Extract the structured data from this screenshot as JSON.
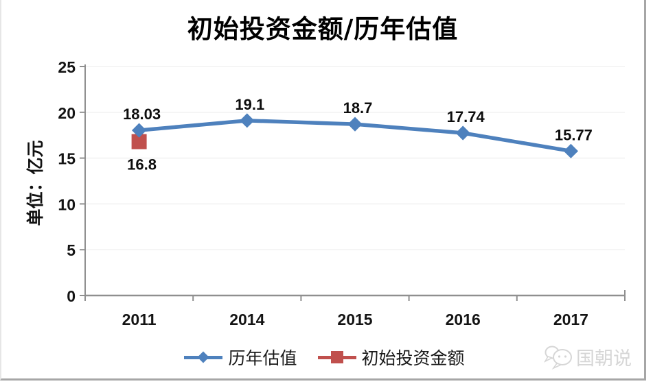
{
  "chart_data": {
    "type": "line",
    "title": "初始投资金额/历年估值",
    "ylabel": "单位：亿元",
    "categories": [
      "2011",
      "2014",
      "2015",
      "2016",
      "2017"
    ],
    "series": [
      {
        "name": "历年估值",
        "marker": "diamond",
        "color": "#4E81BD",
        "show_line": true,
        "values": [
          18.03,
          19.1,
          18.7,
          17.74,
          15.77
        ],
        "data_labels": [
          "18.03",
          "19.1",
          "18.7",
          "17.74",
          "15.77"
        ],
        "label_offset": -16
      },
      {
        "name": "初始投资金额",
        "marker": "square",
        "color": "#C0504D",
        "show_line": false,
        "values": [
          16.8,
          null,
          null,
          null,
          null
        ],
        "data_labels": [
          "16.8",
          null,
          null,
          null,
          null
        ],
        "label_offset": 41
      }
    ],
    "ylim": [
      0,
      25
    ],
    "yticks": [
      0,
      5,
      10,
      15,
      20,
      25
    ],
    "grid": true,
    "legend_position": "bottom"
  },
  "colors": {
    "axis": "#8f8f8f",
    "gridline": "#f2f2f2",
    "tick_text": "#141414",
    "border": "#a6a6a6",
    "watermark": "#d6d6d6"
  },
  "watermark": {
    "text": "国朝说",
    "icon": "chat-bubbles-icon"
  }
}
